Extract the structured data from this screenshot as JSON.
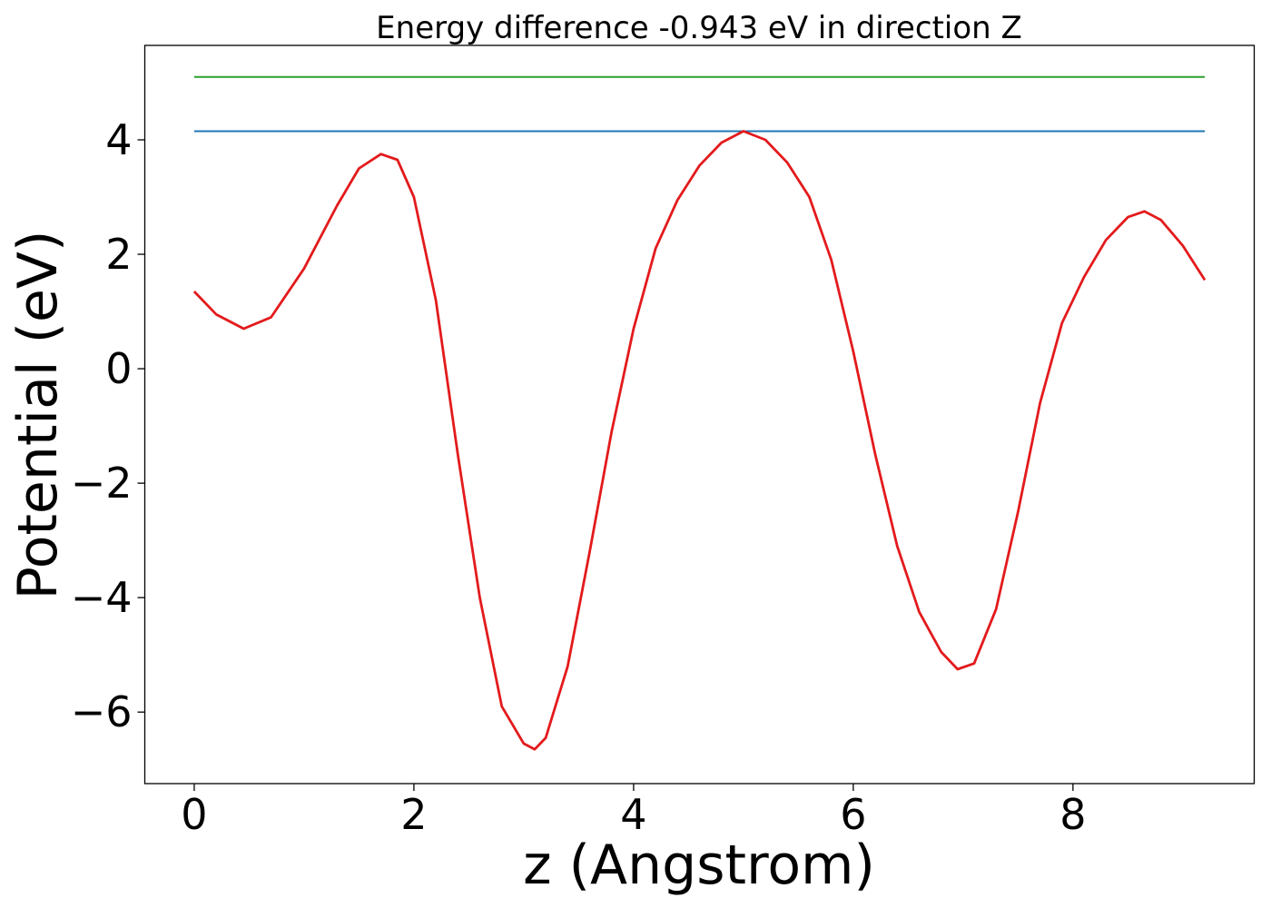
{
  "chart_data": {
    "type": "line",
    "title": "Energy difference -0.943 eV in direction Z",
    "xlabel": "z (Angstrom)",
    "ylabel": "Potential (eV)",
    "xlim": [
      -0.45,
      9.65
    ],
    "ylim": [
      -7.25,
      5.65
    ],
    "grid": false,
    "xticks": [
      0,
      2,
      4,
      6,
      8
    ],
    "xtick_labels": [
      "0",
      "2",
      "4",
      "6",
      "8"
    ],
    "yticks": [
      -6,
      -4,
      -2,
      0,
      2,
      4
    ],
    "ytick_labels": [
      "−6",
      "−4",
      "−2",
      "0",
      "2",
      "4"
    ],
    "series": [
      {
        "color": "#2ca02c",
        "x": [
          0,
          9.2
        ],
        "y": [
          5.1,
          5.1
        ]
      },
      {
        "color": "#1f77b4",
        "x": [
          0,
          9.2
        ],
        "y": [
          4.15,
          4.15
        ]
      },
      {
        "color": "#e31a1c",
        "x": [
          0,
          0.2,
          0.45,
          0.7,
          1.0,
          1.3,
          1.5,
          1.7,
          1.85,
          2.0,
          2.2,
          2.4,
          2.6,
          2.8,
          3.0,
          3.1,
          3.2,
          3.4,
          3.6,
          3.8,
          4.0,
          4.2,
          4.4,
          4.6,
          4.8,
          5.0,
          5.2,
          5.4,
          5.6,
          5.8,
          6.0,
          6.2,
          6.4,
          6.6,
          6.8,
          6.95,
          7.1,
          7.3,
          7.5,
          7.7,
          7.9,
          8.1,
          8.3,
          8.5,
          8.65,
          8.8,
          9.0,
          9.2
        ],
        "y": [
          1.35,
          0.95,
          0.7,
          0.9,
          1.75,
          2.85,
          3.5,
          3.75,
          3.65,
          3.0,
          1.2,
          -1.5,
          -4.0,
          -5.9,
          -6.55,
          -6.65,
          -6.45,
          -5.2,
          -3.2,
          -1.1,
          0.7,
          2.1,
          2.95,
          3.55,
          3.95,
          4.15,
          4.0,
          3.6,
          3.0,
          1.9,
          0.3,
          -1.5,
          -3.1,
          -4.25,
          -4.95,
          -5.25,
          -5.15,
          -4.2,
          -2.5,
          -0.6,
          0.8,
          1.6,
          2.25,
          2.65,
          2.75,
          2.6,
          2.15,
          1.55
        ]
      }
    ]
  }
}
